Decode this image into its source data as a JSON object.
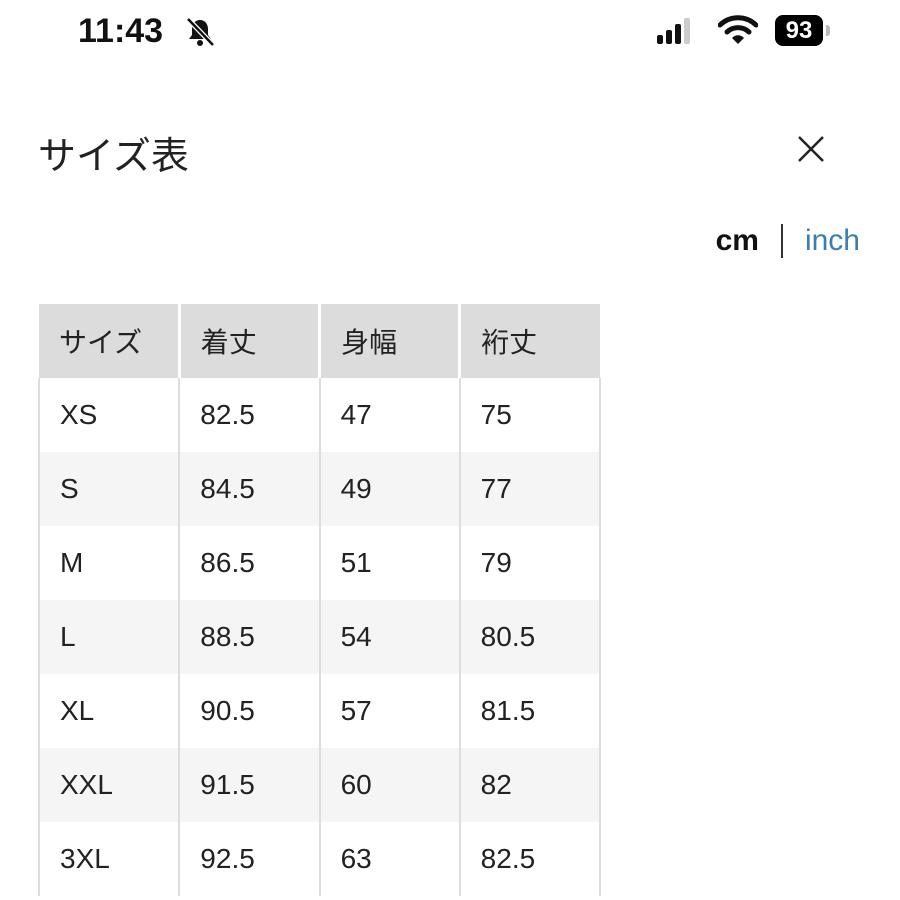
{
  "status_bar": {
    "time": "11:43",
    "battery": "93",
    "icons": [
      "bell-slash-icon",
      "signal-icon",
      "wifi-icon",
      "battery-icon"
    ]
  },
  "modal": {
    "title": "サイズ表",
    "close_icon": "close-icon"
  },
  "units": {
    "cm": "cm",
    "inch": "inch",
    "selected": "cm",
    "accent": "#3b7fae"
  },
  "table": {
    "headers": [
      "サイズ",
      "着丈",
      "身幅",
      "裄丈"
    ],
    "rows": [
      [
        "XS",
        "82.5",
        "47",
        "75"
      ],
      [
        "S",
        "84.5",
        "49",
        "77"
      ],
      [
        "M",
        "86.5",
        "51",
        "79"
      ],
      [
        "L",
        "88.5",
        "54",
        "80.5"
      ],
      [
        "XL",
        "90.5",
        "57",
        "81.5"
      ],
      [
        "XXL",
        "91.5",
        "60",
        "82"
      ],
      [
        "3XL",
        "92.5",
        "63",
        "82.5"
      ]
    ]
  }
}
